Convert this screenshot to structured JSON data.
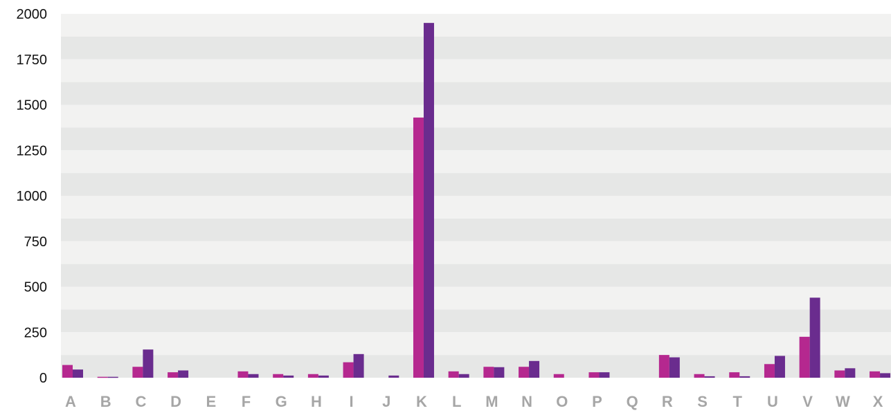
{
  "chart_data": {
    "type": "bar",
    "title": "",
    "xlabel": "",
    "ylabel": "",
    "ylim": [
      0,
      2000
    ],
    "yticks": [
      0,
      250,
      500,
      750,
      1000,
      1250,
      1500,
      1750,
      2000
    ],
    "grid": "alternating horizontal bands",
    "legend": "none",
    "categories": [
      "A",
      "B",
      "C",
      "D",
      "E",
      "F",
      "G",
      "H",
      "I",
      "J",
      "K",
      "L",
      "M",
      "N",
      "O",
      "P",
      "Q",
      "R",
      "S",
      "T",
      "U",
      "V",
      "W",
      "X"
    ],
    "series": [
      {
        "color": "#b5288f",
        "values": [
          70,
          5,
          60,
          30,
          0,
          35,
          20,
          20,
          85,
          0,
          1430,
          35,
          60,
          60,
          20,
          30,
          0,
          125,
          20,
          30,
          75,
          225,
          40,
          35
        ]
      },
      {
        "color": "#6a2c8e",
        "values": [
          45,
          5,
          155,
          40,
          0,
          20,
          12,
          12,
          130,
          12,
          1950,
          20,
          58,
          92,
          0,
          30,
          0,
          112,
          8,
          8,
          120,
          440,
          52,
          25
        ]
      }
    ],
    "band_colors": [
      "#f2f2f1",
      "#e6e7e6"
    ]
  }
}
